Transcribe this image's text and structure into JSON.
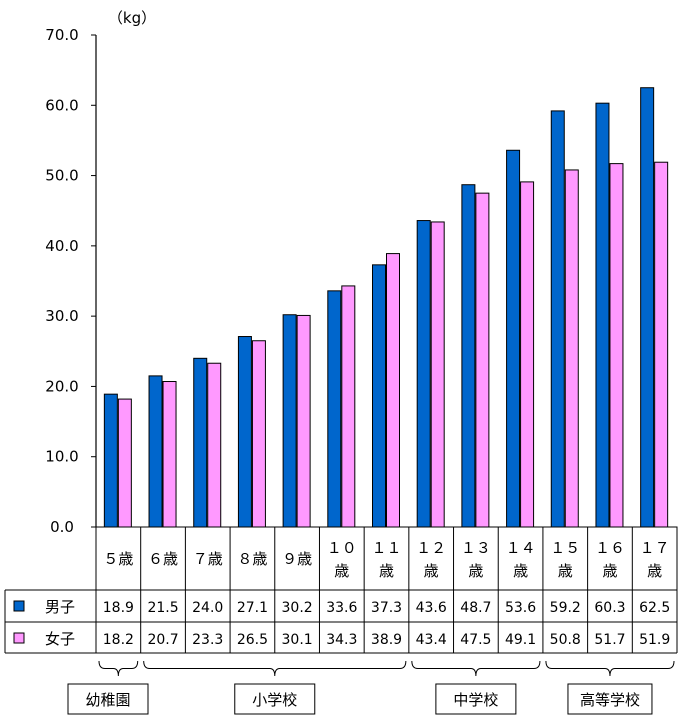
{
  "chart_data": {
    "type": "bar",
    "unit_label": "（kg）",
    "ylim": [
      0,
      70
    ],
    "yticks": [
      "0.0",
      "10.0",
      "20.0",
      "30.0",
      "40.0",
      "50.0",
      "60.0",
      "70.0"
    ],
    "categories": [
      [
        "５歳"
      ],
      [
        "６歳"
      ],
      [
        "７歳"
      ],
      [
        "８歳"
      ],
      [
        "９歳"
      ],
      [
        "１０",
        "歳"
      ],
      [
        "１１",
        "歳"
      ],
      [
        "１２",
        "歳"
      ],
      [
        "１３",
        "歳"
      ],
      [
        "１４",
        "歳"
      ],
      [
        "１５",
        "歳"
      ],
      [
        "１６",
        "歳"
      ],
      [
        "１７",
        "歳"
      ]
    ],
    "series": [
      {
        "name": "男子",
        "color": "#0066CC",
        "values": [
          18.9,
          21.5,
          24.0,
          27.1,
          30.2,
          33.6,
          37.3,
          43.6,
          48.7,
          53.6,
          59.2,
          60.3,
          62.5
        ],
        "labels": [
          "18.9",
          "21.5",
          "24.0",
          "27.1",
          "30.2",
          "33.6",
          "37.3",
          "43.6",
          "48.7",
          "53.6",
          "59.2",
          "60.3",
          "62.5"
        ]
      },
      {
        "name": "女子",
        "color": "#FF99FF",
        "values": [
          18.2,
          20.7,
          23.3,
          26.5,
          30.1,
          34.3,
          38.9,
          43.4,
          47.5,
          49.1,
          50.8,
          51.7,
          51.9
        ],
        "labels": [
          "18.2",
          "20.7",
          "23.3",
          "26.5",
          "30.1",
          "34.3",
          "38.9",
          "43.4",
          "47.5",
          "49.1",
          "50.8",
          "51.7",
          "51.9"
        ]
      }
    ],
    "groups": [
      {
        "label": "幼稚園",
        "from": 0,
        "to": 0
      },
      {
        "label": "小学校",
        "from": 1,
        "to": 6
      },
      {
        "label": "中学校",
        "from": 7,
        "to": 9
      },
      {
        "label": "高等学校",
        "from": 10,
        "to": 12
      }
    ],
    "grid": false
  }
}
